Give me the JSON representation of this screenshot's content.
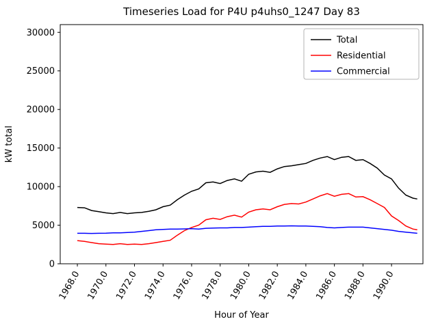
{
  "chart_data": {
    "type": "line",
    "title": "Timeseries Load for P4U p4uhs0_1247  Day 83",
    "xlabel": "Hour of Year",
    "ylabel": "kW total",
    "xlim": [
      1966.8,
      1992.2
    ],
    "ylim": [
      0,
      31000
    ],
    "grid": false,
    "legend_position": "upper right",
    "xticks": [
      {
        "value": 1968,
        "label": "1968.0"
      },
      {
        "value": 1970,
        "label": "1970.0"
      },
      {
        "value": 1972,
        "label": "1972.0"
      },
      {
        "value": 1974,
        "label": "1974.0"
      },
      {
        "value": 1976,
        "label": "1976.0"
      },
      {
        "value": 1978,
        "label": "1978.0"
      },
      {
        "value": 1980,
        "label": "1980.0"
      },
      {
        "value": 1982,
        "label": "1982.0"
      },
      {
        "value": 1984,
        "label": "1984.0"
      },
      {
        "value": 1986,
        "label": "1986.0"
      },
      {
        "value": 1988,
        "label": "1988.0"
      },
      {
        "value": 1990,
        "label": "1990.0"
      }
    ],
    "yticks": [
      0,
      5000,
      10000,
      15000,
      20000,
      25000,
      30000
    ],
    "x": [
      1968.0,
      1968.5,
      1969.0,
      1969.5,
      1970.0,
      1970.5,
      1971.0,
      1971.5,
      1972.0,
      1972.5,
      1973.0,
      1973.5,
      1974.0,
      1974.5,
      1975.0,
      1975.5,
      1976.0,
      1976.5,
      1977.0,
      1977.5,
      1978.0,
      1978.5,
      1979.0,
      1979.5,
      1980.0,
      1980.5,
      1981.0,
      1981.5,
      1982.0,
      1982.5,
      1983.0,
      1983.5,
      1984.0,
      1984.5,
      1985.0,
      1985.5,
      1986.0,
      1986.5,
      1987.0,
      1987.5,
      1988.0,
      1988.5,
      1989.0,
      1989.5,
      1990.0,
      1990.5,
      1991.0,
      1991.5,
      1991.8
    ],
    "series": [
      {
        "name": "Total",
        "color": "#000000",
        "values": [
          7300,
          7250,
          6900,
          6750,
          6600,
          6500,
          6650,
          6500,
          6600,
          6650,
          6800,
          7000,
          7400,
          7600,
          8300,
          8900,
          9400,
          9700,
          10500,
          10600,
          10400,
          10800,
          11000,
          10700,
          11600,
          11900,
          12000,
          11850,
          12300,
          12600,
          12700,
          12850,
          13000,
          13400,
          13700,
          13900,
          13500,
          13800,
          13900,
          13400,
          13500,
          13000,
          12400,
          11500,
          11000,
          9800,
          8900,
          8500,
          8400
        ]
      },
      {
        "name": "Residential",
        "color": "#ff0000",
        "values": [
          3000,
          2900,
          2750,
          2600,
          2550,
          2500,
          2600,
          2500,
          2550,
          2500,
          2600,
          2750,
          2900,
          3050,
          3700,
          4300,
          4700,
          5000,
          5700,
          5900,
          5750,
          6100,
          6300,
          6050,
          6700,
          7000,
          7100,
          7000,
          7400,
          7700,
          7800,
          7750,
          8000,
          8400,
          8800,
          9100,
          8750,
          9000,
          9100,
          8650,
          8700,
          8300,
          7800,
          7300,
          6200,
          5600,
          4900,
          4500,
          4400
        ]
      },
      {
        "name": "Commercial",
        "color": "#0000ff",
        "values": [
          3950,
          3950,
          3930,
          3950,
          3960,
          4000,
          4000,
          4050,
          4100,
          4200,
          4300,
          4400,
          4450,
          4500,
          4500,
          4520,
          4550,
          4500,
          4600,
          4620,
          4650,
          4650,
          4700,
          4700,
          4750,
          4800,
          4850,
          4850,
          4900,
          4900,
          4920,
          4900,
          4900,
          4850,
          4800,
          4700,
          4650,
          4700,
          4750,
          4750,
          4750,
          4650,
          4550,
          4450,
          4350,
          4200,
          4100,
          4000,
          3950
        ]
      }
    ]
  }
}
